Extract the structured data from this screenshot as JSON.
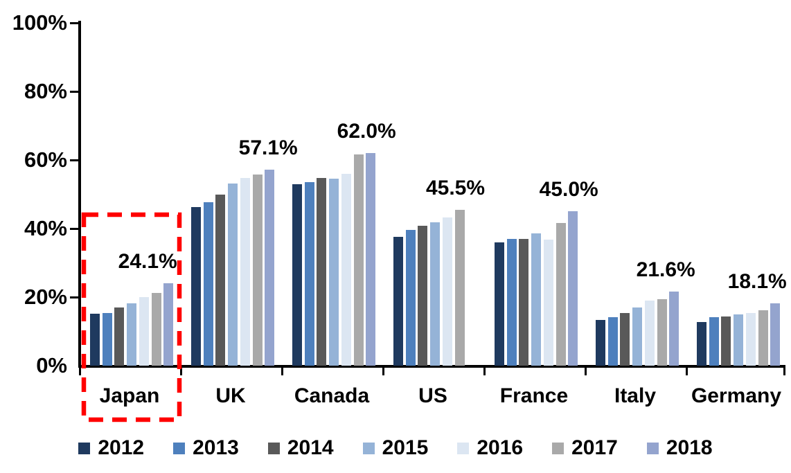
{
  "chart_data": {
    "type": "bar",
    "title": "",
    "xlabel": "",
    "ylabel": "",
    "ylim": [
      0,
      100
    ],
    "grid": false,
    "legend_position": "bottom",
    "y_tick_labels": [
      "100%",
      "80%",
      "60%",
      "40%",
      "20%",
      "0%"
    ],
    "y_tick_values": [
      100,
      80,
      60,
      40,
      20,
      0
    ],
    "categories": [
      "Japan",
      "UK",
      "Canada",
      "US",
      "France",
      "Italy",
      "Germany"
    ],
    "series": [
      {
        "name": "2012",
        "color": "#1F3A5F",
        "values": [
          15.1,
          46.2,
          52.9,
          37.6,
          35.9,
          13.4,
          12.7
        ]
      },
      {
        "name": "2013",
        "color": "#4E80BD",
        "values": [
          15.3,
          47.6,
          53.5,
          39.6,
          37.0,
          14.2,
          14.1
        ]
      },
      {
        "name": "2014",
        "color": "#595959",
        "values": [
          16.9,
          49.8,
          54.8,
          40.8,
          37.0,
          15.4,
          14.4
        ]
      },
      {
        "name": "2015",
        "color": "#95B3D7",
        "values": [
          18.2,
          53.1,
          54.5,
          41.8,
          38.5,
          17.0,
          14.9
        ]
      },
      {
        "name": "2016",
        "color": "#DCE6F2",
        "values": [
          19.9,
          54.8,
          56.0,
          43.3,
          36.7,
          19.0,
          15.4
        ]
      },
      {
        "name": "2017",
        "color": "#A9A9A9",
        "values": [
          21.3,
          55.8,
          61.7,
          45.5,
          41.7,
          19.3,
          16.1
        ]
      },
      {
        "name": "2018",
        "color": "#94A4CE",
        "values": [
          24.1,
          57.1,
          62.0,
          null,
          45.0,
          21.6,
          18.1
        ]
      }
    ],
    "data_labels": [
      "24.1%",
      "57.1%",
      "62.0%",
      "45.5%",
      "45.0%",
      "21.6%",
      "18.1%"
    ],
    "annotations": {
      "highlight_color": "#FF0000",
      "highlighted_category": "Japan"
    }
  },
  "legend": {
    "items": [
      "2012",
      "2013",
      "2014",
      "2015",
      "2016",
      "2017",
      "2018"
    ]
  }
}
